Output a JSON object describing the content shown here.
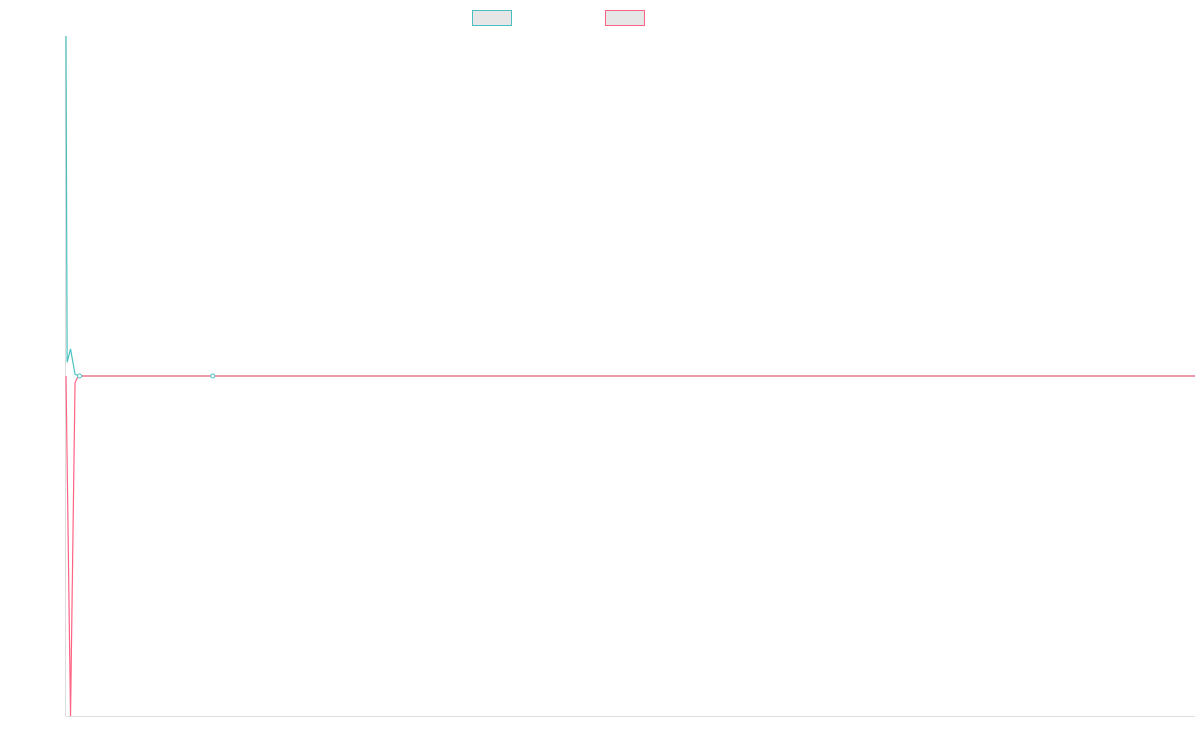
{
  "chart_data": {
    "type": "line",
    "title": "",
    "xlabel": "",
    "ylabel": "",
    "grid": false,
    "legend_placement": "top-center",
    "xlim": [
      0,
      100
    ],
    "ylim": [
      -1,
      1
    ],
    "series": [
      {
        "color": "#4bc0c0",
        "legend_fill": "#e6e6e6",
        "points": [
          {
            "x": 0.0,
            "y": 1.0
          },
          {
            "x": 0.1,
            "y": 0.04
          },
          {
            "x": 0.4,
            "y": 0.08
          },
          {
            "x": 0.8,
            "y": 0.005
          },
          {
            "x": 1.2,
            "y": 0.0
          },
          {
            "x": 13.0,
            "y": 0.0
          },
          {
            "x": 100.0,
            "y": 0.0
          }
        ]
      },
      {
        "color": "#ff6384",
        "legend_fill": "#e6e6e6",
        "points": [
          {
            "x": 0.0,
            "y": 0.0
          },
          {
            "x": 0.4,
            "y": -1.0
          },
          {
            "x": 0.8,
            "y": -0.02
          },
          {
            "x": 1.0,
            "y": -0.005
          },
          {
            "x": 1.2,
            "y": 0.0
          },
          {
            "x": 100.0,
            "y": 0.0
          }
        ]
      }
    ]
  }
}
